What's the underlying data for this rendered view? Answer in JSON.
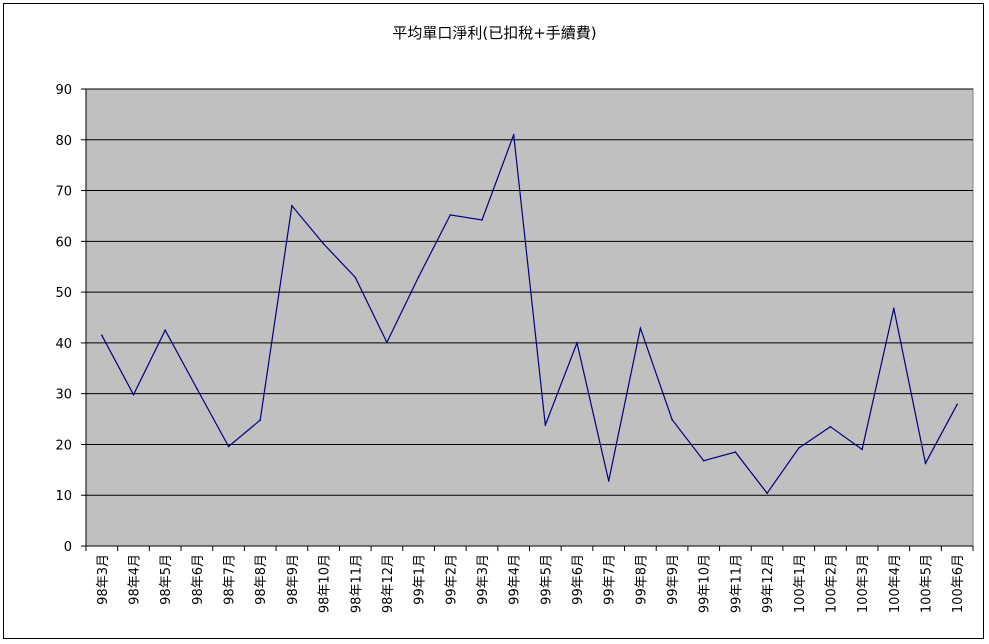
{
  "chart_data": {
    "type": "line",
    "title": "平均單口淨利(已扣稅+手續費)",
    "xlabel": "",
    "ylabel": "",
    "ylim": [
      0,
      90
    ],
    "yticks": [
      0,
      10,
      20,
      30,
      40,
      50,
      60,
      70,
      80,
      90
    ],
    "grid": true,
    "legend": "none",
    "colors": {
      "plot_bg": "#c0c0c0",
      "line": "#000080",
      "grid": "#000000"
    },
    "categories": [
      "98年3月",
      "98年4月",
      "98年5月",
      "98年6月",
      "98年7月",
      "98年8月",
      "98年9月",
      "98年10月",
      "98年11月",
      "98年12月",
      "99年1月",
      "99年2月",
      "99年3月",
      "99年4月",
      "99年5月",
      "99年6月",
      "99年7月",
      "99年8月",
      "99年9月",
      "99年10月",
      "99年11月",
      "99年12月",
      "100年1月",
      "100年2月",
      "100年3月",
      "100年4月",
      "100年5月",
      "100年6月"
    ],
    "series": [
      {
        "values": [
          41.5,
          29.8,
          42.5,
          31,
          19.6,
          24.8,
          67,
          59.5,
          52.9,
          40.1,
          53,
          65.2,
          64.2,
          81,
          23.8,
          40,
          12.8,
          42.9,
          24.9,
          16.8,
          18.5,
          10.4,
          19.3,
          23.5,
          19,
          46.8,
          16.3,
          27.9
        ]
      }
    ]
  }
}
